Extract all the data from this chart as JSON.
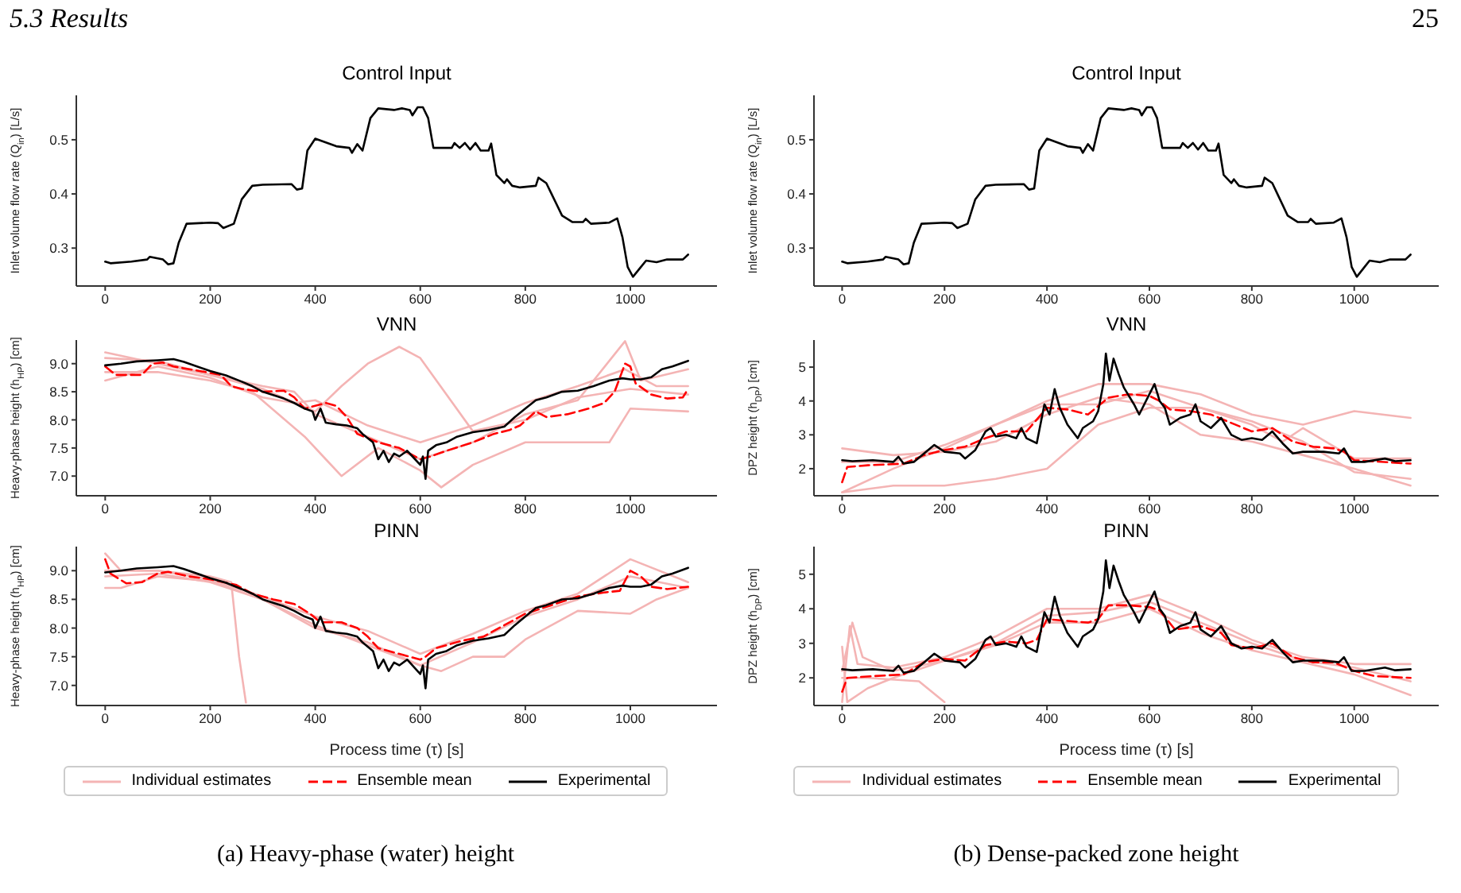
{
  "chart_data": [
    {
      "type": "line",
      "title": "Control Input",
      "ylabel": "Inlet volume flow rate (Q$_{in}$) [L/s]",
      "annotations": [
        "5.3 Results"
      ],
      "xlim": [
        -55,
        1165
      ],
      "xticks": [
        0,
        200,
        400,
        600,
        800,
        1000
      ],
      "ylim": [
        0.23,
        0.582
      ],
      "yticks": [
        0.3,
        0.4,
        0.5
      ],
      "legend": false,
      "series": [
        {
          "color": "#000000",
          "x": [
            0,
            10,
            50,
            80,
            85,
            110,
            120,
            130,
            140,
            155,
            200,
            215,
            225,
            245,
            260,
            280,
            300,
            355,
            365,
            375,
            385,
            400,
            420,
            440,
            465,
            470,
            480,
            490,
            505,
            520,
            550,
            565,
            580,
            585,
            595,
            605,
            615,
            625,
            660,
            665,
            675,
            685,
            695,
            705,
            715,
            730,
            735,
            745,
            760,
            765,
            775,
            790,
            820,
            825,
            840,
            850,
            870,
            890,
            910,
            915,
            925,
            960,
            975,
            985,
            995,
            1005,
            1020,
            1030,
            1050,
            1070,
            1100,
            1110
          ],
          "values": [
            0.275,
            0.272,
            0.275,
            0.279,
            0.284,
            0.279,
            0.27,
            0.272,
            0.31,
            0.345,
            0.347,
            0.346,
            0.337,
            0.345,
            0.39,
            0.415,
            0.417,
            0.418,
            0.408,
            0.41,
            0.48,
            0.502,
            0.495,
            0.488,
            0.485,
            0.476,
            0.492,
            0.48,
            0.54,
            0.558,
            0.555,
            0.558,
            0.555,
            0.545,
            0.56,
            0.56,
            0.54,
            0.485,
            0.485,
            0.494,
            0.485,
            0.494,
            0.482,
            0.494,
            0.48,
            0.48,
            0.493,
            0.435,
            0.42,
            0.427,
            0.415,
            0.412,
            0.415,
            0.43,
            0.42,
            0.4,
            0.36,
            0.348,
            0.348,
            0.354,
            0.345,
            0.347,
            0.355,
            0.32,
            0.265,
            0.247,
            0.265,
            0.277,
            0.274,
            0.279,
            0.279,
            0.288
          ]
        }
      ]
    },
    {
      "type": "line",
      "title": "VNN",
      "ylabel": "Heavy-phase height (h$_{HP}$) [cm]",
      "xlim": [
        -55,
        1165
      ],
      "xticks": [
        0,
        200,
        400,
        600,
        800,
        1000
      ],
      "ylim": [
        6.65,
        9.42
      ],
      "yticks": [
        {
          "value": 7,
          "label": "7.0"
        },
        7.5,
        {
          "value": 8,
          "label": "8.0"
        },
        8.5,
        {
          "value": 9,
          "label": "9.0"
        }
      ],
      "legend": false,
      "series": [
        {
          "color": "#f4b4b4",
          "x": [
            0,
            100,
            200,
            300,
            360,
            400,
            500,
            600,
            700,
            800,
            900,
            990,
            1020,
            1110
          ],
          "values": [
            9.1,
            9.05,
            8.8,
            8.6,
            8.5,
            8.1,
            7.7,
            7.3,
            7.6,
            8.1,
            8.35,
            9.4,
            8.7,
            8.9
          ]
        },
        {
          "color": "#f4b4b4",
          "x": [
            0,
            100,
            200,
            300,
            360,
            400,
            500,
            600,
            700,
            800,
            900,
            990,
            1050,
            1110
          ],
          "values": [
            8.7,
            8.95,
            8.75,
            8.4,
            8.3,
            8.35,
            7.9,
            7.6,
            7.9,
            8.3,
            8.6,
            8.9,
            8.6,
            8.6
          ]
        },
        {
          "color": "#f4b4b4",
          "x": [
            0,
            100,
            200,
            280,
            380,
            420,
            450,
            520,
            600,
            640,
            700,
            800,
            900,
            960,
            1000,
            1110
          ],
          "values": [
            8.85,
            8.85,
            8.7,
            8.5,
            7.7,
            7.3,
            7.0,
            7.5,
            7.1,
            6.8,
            7.2,
            7.6,
            7.6,
            7.6,
            8.2,
            8.15
          ]
        },
        {
          "color": "#f4b4b4",
          "x": [
            0,
            100,
            200,
            300,
            400,
            450,
            500,
            560,
            600,
            700,
            800,
            900,
            1000,
            1110
          ],
          "values": [
            9.2,
            9.0,
            8.8,
            8.55,
            8.15,
            8.6,
            9.0,
            9.3,
            9.1,
            7.8,
            8.0,
            8.4,
            8.55,
            8.45
          ]
        },
        {
          "color": "#ff0000",
          "line_style": "dashed",
          "x": [
            0,
            20,
            70,
            90,
            110,
            130,
            180,
            220,
            240,
            260,
            300,
            340,
            360,
            380,
            400,
            420,
            440,
            460,
            480,
            520,
            560,
            580,
            600,
            620,
            650,
            700,
            740,
            770,
            790,
            820,
            840,
            880,
            920,
            950,
            970,
            990,
            1000,
            1010,
            1040,
            1070,
            1100,
            1110
          ],
          "values": [
            8.95,
            8.8,
            8.8,
            9.0,
            9.02,
            8.95,
            8.87,
            8.8,
            8.6,
            8.55,
            8.5,
            8.52,
            8.4,
            8.2,
            8.25,
            8.3,
            8.25,
            8.05,
            7.75,
            7.6,
            7.5,
            7.4,
            7.3,
            7.35,
            7.45,
            7.6,
            7.75,
            7.82,
            7.9,
            8.15,
            8.05,
            8.1,
            8.2,
            8.3,
            8.5,
            9.0,
            8.95,
            8.65,
            8.45,
            8.38,
            8.4,
            8.55
          ]
        },
        {
          "color": "#000000",
          "x": [
            0,
            30,
            60,
            100,
            130,
            150,
            200,
            230,
            260,
            280,
            300,
            320,
            340,
            360,
            380,
            395,
            400,
            410,
            420,
            440,
            460,
            480,
            490,
            510,
            520,
            530,
            540,
            550,
            560,
            575,
            590,
            600,
            605,
            610,
            615,
            630,
            650,
            670,
            700,
            730,
            760,
            780,
            800,
            820,
            840,
            870,
            900,
            930,
            960,
            985,
            1000,
            1020,
            1040,
            1060,
            1080,
            1110
          ],
          "values": [
            8.97,
            9.0,
            9.04,
            9.06,
            9.08,
            9.03,
            8.87,
            8.79,
            8.68,
            8.6,
            8.5,
            8.44,
            8.38,
            8.3,
            8.2,
            8.15,
            8.0,
            8.2,
            7.95,
            7.92,
            7.9,
            7.85,
            7.75,
            7.6,
            7.3,
            7.45,
            7.25,
            7.4,
            7.35,
            7.45,
            7.3,
            7.2,
            7.35,
            6.95,
            7.45,
            7.55,
            7.6,
            7.7,
            7.78,
            7.82,
            7.88,
            8.05,
            8.2,
            8.35,
            8.4,
            8.5,
            8.52,
            8.6,
            8.7,
            8.74,
            8.72,
            8.72,
            8.76,
            8.9,
            8.95,
            9.05
          ]
        }
      ]
    },
    {
      "type": "line",
      "title": "PINN",
      "ylabel": "Heavy-phase height (h$_{HP}$) [cm]",
      "xlabel": "Process time (τ) [s]",
      "annotations": [
        "(a) Heavy-phase (water) height"
      ],
      "xlim": [
        -55,
        1165
      ],
      "xticks": [
        0,
        200,
        400,
        600,
        800,
        1000
      ],
      "ylim": [
        6.65,
        9.42
      ],
      "yticks": [
        {
          "value": 7,
          "label": "7.0"
        },
        7.5,
        {
          "value": 8,
          "label": "8.0"
        },
        8.5,
        {
          "value": 9,
          "label": "9.0"
        }
      ],
      "legend": "bottom",
      "series": [
        {
          "name": "Individual estimates",
          "color": "#f4b4b4",
          "x": [
            0,
            30,
            100,
            200,
            300,
            400,
            500,
            600,
            700,
            800,
            900,
            1000,
            1110
          ],
          "values": [
            9.3,
            9.0,
            9.0,
            8.85,
            8.55,
            8.2,
            7.95,
            7.55,
            7.9,
            8.3,
            8.6,
            9.2,
            8.8
          ]
        },
        {
          "color": "#f4b4b4",
          "x": [
            0,
            30,
            100,
            200,
            300,
            400,
            500,
            600,
            700,
            800,
            900,
            1000,
            1110
          ],
          "values": [
            8.7,
            8.7,
            8.9,
            8.82,
            8.5,
            8.0,
            7.75,
            7.35,
            7.75,
            8.2,
            8.5,
            8.9,
            8.7
          ]
        },
        {
          "color": "#f4b4b4",
          "x": [
            0,
            100,
            200,
            240,
            255,
            268
          ],
          "values": [
            9.0,
            9.0,
            8.9,
            8.8,
            7.5,
            6.7
          ]
        },
        {
          "color": "#f4b4b4",
          "x": [
            0,
            100,
            200,
            300,
            400,
            500,
            600,
            640,
            700,
            760,
            800,
            900,
            1000,
            1050,
            1110
          ],
          "values": [
            8.9,
            8.95,
            8.8,
            8.5,
            8.05,
            7.7,
            7.35,
            7.25,
            7.5,
            7.5,
            7.8,
            8.3,
            8.25,
            8.5,
            8.7
          ]
        },
        {
          "name": "Ensemble mean",
          "color": "#ff0000",
          "line_style": "dashed",
          "x": [
            0,
            10,
            40,
            70,
            100,
            120,
            160,
            200,
            250,
            280,
            320,
            360,
            390,
            410,
            450,
            480,
            500,
            520,
            560,
            600,
            610,
            630,
            680,
            720,
            760,
            800,
            850,
            900,
            950,
            980,
            1000,
            1020,
            1040,
            1070,
            1110
          ],
          "values": [
            9.2,
            8.95,
            8.78,
            8.8,
            8.95,
            8.98,
            8.9,
            8.85,
            8.75,
            8.6,
            8.5,
            8.42,
            8.25,
            8.1,
            8.1,
            8.0,
            7.85,
            7.65,
            7.55,
            7.45,
            7.5,
            7.65,
            7.78,
            7.85,
            8.05,
            8.25,
            8.4,
            8.55,
            8.62,
            8.65,
            9.0,
            8.9,
            8.72,
            8.68,
            8.72
          ]
        },
        {
          "name": "Experimental",
          "color": "#000000",
          "x": [
            0,
            30,
            60,
            100,
            130,
            150,
            200,
            230,
            260,
            280,
            300,
            320,
            340,
            360,
            380,
            395,
            400,
            410,
            420,
            440,
            460,
            480,
            490,
            510,
            520,
            530,
            540,
            550,
            560,
            575,
            590,
            600,
            605,
            610,
            615,
            630,
            650,
            670,
            700,
            730,
            760,
            780,
            800,
            820,
            840,
            870,
            900,
            930,
            960,
            985,
            1000,
            1020,
            1040,
            1060,
            1080,
            1110
          ],
          "values": [
            8.97,
            9.0,
            9.04,
            9.06,
            9.08,
            9.03,
            8.87,
            8.79,
            8.68,
            8.6,
            8.5,
            8.44,
            8.38,
            8.3,
            8.2,
            8.15,
            8.0,
            8.2,
            7.95,
            7.92,
            7.9,
            7.85,
            7.75,
            7.6,
            7.3,
            7.45,
            7.25,
            7.4,
            7.35,
            7.45,
            7.3,
            7.2,
            7.35,
            6.95,
            7.45,
            7.55,
            7.6,
            7.7,
            7.78,
            7.82,
            7.88,
            8.05,
            8.2,
            8.35,
            8.4,
            8.5,
            8.52,
            8.6,
            8.7,
            8.74,
            8.72,
            8.72,
            8.76,
            8.9,
            8.95,
            9.05
          ]
        }
      ]
    },
    {
      "type": "line",
      "title": "Control Input",
      "ylabel": "Inlet volume flow rate (Q$_{in}$) [L/s]",
      "annotations": [
        "25"
      ],
      "xlim": [
        -55,
        1165
      ],
      "xticks": [
        0,
        200,
        400,
        600,
        800,
        1000
      ],
      "ylim": [
        0.23,
        0.582
      ],
      "yticks": [
        0.3,
        0.4,
        0.5
      ],
      "legend": false,
      "series": [
        {
          "color": "#000000",
          "x": [
            0,
            10,
            50,
            80,
            85,
            110,
            120,
            130,
            140,
            155,
            200,
            215,
            225,
            245,
            260,
            280,
            300,
            355,
            365,
            375,
            385,
            400,
            420,
            440,
            465,
            470,
            480,
            490,
            505,
            520,
            550,
            565,
            580,
            585,
            595,
            605,
            615,
            625,
            660,
            665,
            675,
            685,
            695,
            705,
            715,
            730,
            735,
            745,
            760,
            765,
            775,
            790,
            820,
            825,
            840,
            850,
            870,
            890,
            910,
            915,
            925,
            960,
            975,
            985,
            995,
            1005,
            1020,
            1030,
            1050,
            1070,
            1100,
            1110
          ],
          "values": [
            0.275,
            0.272,
            0.275,
            0.279,
            0.284,
            0.279,
            0.27,
            0.272,
            0.31,
            0.345,
            0.347,
            0.346,
            0.337,
            0.345,
            0.39,
            0.415,
            0.417,
            0.418,
            0.408,
            0.41,
            0.48,
            0.502,
            0.495,
            0.488,
            0.485,
            0.476,
            0.492,
            0.48,
            0.54,
            0.558,
            0.555,
            0.558,
            0.555,
            0.545,
            0.56,
            0.56,
            0.54,
            0.485,
            0.485,
            0.494,
            0.485,
            0.494,
            0.482,
            0.494,
            0.48,
            0.48,
            0.493,
            0.435,
            0.42,
            0.427,
            0.415,
            0.412,
            0.415,
            0.43,
            0.42,
            0.4,
            0.36,
            0.348,
            0.348,
            0.354,
            0.345,
            0.347,
            0.355,
            0.32,
            0.265,
            0.247,
            0.265,
            0.277,
            0.274,
            0.279,
            0.279,
            0.288
          ]
        }
      ]
    },
    {
      "type": "line",
      "title": "VNN",
      "ylabel": "DPZ height (h$_{DP}$) [cm]",
      "xlim": [
        -55,
        1165
      ],
      "xticks": [
        0,
        200,
        400,
        600,
        800,
        1000
      ],
      "ylim": [
        1.2,
        5.8
      ],
      "yticks": [
        2,
        3,
        4,
        5
      ],
      "legend": false,
      "series": [
        {
          "color": "#f4b4b4",
          "x": [
            0,
            100,
            200,
            300,
            400,
            500,
            600,
            700,
            800,
            900,
            1000,
            1110
          ],
          "values": [
            1.3,
            2.0,
            2.6,
            3.3,
            4.0,
            4.5,
            4.5,
            4.2,
            3.6,
            3.3,
            3.7,
            3.5
          ]
        },
        {
          "color": "#f4b4b4",
          "x": [
            0,
            100,
            200,
            300,
            400,
            500,
            600,
            700,
            800,
            900,
            1000,
            1110
          ],
          "values": [
            2.6,
            2.4,
            2.5,
            2.8,
            3.6,
            4.1,
            3.9,
            3.0,
            2.8,
            2.4,
            2.0,
            1.5
          ]
        },
        {
          "color": "#f4b4b4",
          "x": [
            0,
            100,
            200,
            300,
            400,
            500,
            600,
            700,
            800,
            900,
            1000,
            1110
          ],
          "values": [
            1.3,
            1.5,
            1.5,
            1.7,
            2.0,
            3.3,
            3.8,
            3.8,
            3.4,
            2.8,
            1.9,
            1.7
          ]
        },
        {
          "color": "#f4b4b4",
          "x": [
            0,
            100,
            200,
            300,
            400,
            500,
            600,
            700,
            800,
            860,
            900,
            1000,
            1110
          ],
          "values": [
            2.2,
            2.2,
            2.7,
            3.3,
            3.9,
            3.9,
            4.3,
            3.8,
            3.3,
            2.8,
            3.2,
            2.3,
            2.3
          ]
        },
        {
          "color": "#ff0000",
          "line_style": "dashed",
          "x": [
            0,
            10,
            50,
            120,
            160,
            200,
            240,
            280,
            320,
            360,
            400,
            440,
            480,
            520,
            560,
            600,
            620,
            640,
            680,
            720,
            760,
            800,
            840,
            880,
            920,
            960,
            980,
            1000,
            1110
          ],
          "values": [
            1.6,
            2.05,
            2.1,
            2.15,
            2.4,
            2.55,
            2.65,
            2.9,
            3.1,
            3.1,
            3.8,
            3.75,
            3.6,
            4.1,
            4.2,
            4.15,
            4.0,
            3.75,
            3.7,
            3.6,
            3.35,
            3.1,
            3.2,
            2.8,
            2.65,
            2.6,
            2.5,
            2.25,
            2.15
          ]
        },
        {
          "color": "#000000",
          "x": [
            0,
            20,
            60,
            100,
            110,
            120,
            140,
            160,
            180,
            190,
            200,
            230,
            240,
            260,
            280,
            290,
            300,
            320,
            340,
            350,
            360,
            380,
            395,
            405,
            415,
            425,
            440,
            460,
            470,
            490,
            500,
            510,
            515,
            522,
            530,
            540,
            550,
            570,
            580,
            600,
            610,
            620,
            630,
            640,
            660,
            680,
            690,
            700,
            720,
            740,
            760,
            780,
            800,
            820,
            840,
            860,
            880,
            900,
            940,
            970,
            980,
            995,
            1020,
            1060,
            1080,
            1110
          ],
          "values": [
            2.25,
            2.22,
            2.25,
            2.2,
            2.35,
            2.15,
            2.2,
            2.45,
            2.7,
            2.6,
            2.5,
            2.45,
            2.3,
            2.55,
            3.1,
            3.2,
            2.95,
            3.0,
            2.9,
            3.2,
            2.9,
            2.75,
            3.9,
            3.6,
            4.35,
            3.8,
            3.3,
            2.9,
            3.2,
            3.4,
            3.7,
            4.5,
            5.4,
            4.6,
            5.25,
            4.8,
            4.4,
            3.9,
            3.6,
            4.2,
            4.5,
            4.0,
            3.8,
            3.3,
            3.5,
            3.6,
            3.9,
            3.4,
            3.2,
            3.5,
            3.0,
            2.85,
            2.9,
            2.85,
            3.1,
            2.75,
            2.45,
            2.5,
            2.5,
            2.45,
            2.6,
            2.2,
            2.2,
            2.3,
            2.22,
            2.25
          ]
        }
      ]
    },
    {
      "type": "line",
      "title": "PINN",
      "ylabel": "DPZ height (h$_{DP}$) [cm]",
      "xlabel": "Process time (τ) [s]",
      "annotations": [
        "(b) Dense-packed zone height"
      ],
      "xlim": [
        -55,
        1165
      ],
      "xticks": [
        0,
        200,
        400,
        600,
        800,
        1000
      ],
      "ylim": [
        1.2,
        5.8
      ],
      "yticks": [
        2,
        3,
        4,
        5
      ],
      "legend": "bottom",
      "series": [
        {
          "name": "Individual estimates",
          "color": "#f4b4b4",
          "x": [
            0,
            15,
            30,
            100,
            200,
            300,
            400,
            500,
            600,
            700,
            800,
            900,
            1000,
            1110
          ],
          "values": [
            1.3,
            3.5,
            2.4,
            2.3,
            2.6,
            3.2,
            4.0,
            4.0,
            4.4,
            3.8,
            3.1,
            2.6,
            2.4,
            2.4
          ]
        },
        {
          "color": "#f4b4b4",
          "x": [
            0,
            10,
            50,
            100,
            200,
            300,
            400,
            500,
            600,
            700,
            800,
            900,
            1000,
            1110
          ],
          "values": [
            2.9,
            1.3,
            1.7,
            2.0,
            2.5,
            2.95,
            3.6,
            3.6,
            4.0,
            3.3,
            2.8,
            2.45,
            2.1,
            1.5
          ]
        },
        {
          "color": "#f4b4b4",
          "x": [
            0,
            50,
            150,
            200
          ],
          "values": [
            2.0,
            2.0,
            1.9,
            1.3
          ]
        },
        {
          "color": "#f4b4b4",
          "x": [
            0,
            20,
            40,
            100,
            200,
            300,
            400,
            500,
            600,
            700,
            800,
            900,
            1000,
            1110
          ],
          "values": [
            2.2,
            3.6,
            2.6,
            2.2,
            2.5,
            3.0,
            3.8,
            3.9,
            4.2,
            3.6,
            3.0,
            2.5,
            2.3,
            1.9
          ]
        },
        {
          "name": "Ensemble mean",
          "color": "#ff0000",
          "line_style": "dashed",
          "x": [
            0,
            10,
            60,
            120,
            160,
            200,
            240,
            280,
            320,
            360,
            380,
            400,
            440,
            480,
            500,
            520,
            560,
            600,
            620,
            650,
            700,
            740,
            760,
            800,
            840,
            880,
            920,
            960,
            1000,
            1040,
            1110
          ],
          "values": [
            1.6,
            2.0,
            2.05,
            2.1,
            2.45,
            2.55,
            2.5,
            2.95,
            3.05,
            3.0,
            3.1,
            3.7,
            3.65,
            3.6,
            3.7,
            4.1,
            4.1,
            4.05,
            3.95,
            3.4,
            3.5,
            3.3,
            2.95,
            2.85,
            3.0,
            2.6,
            2.45,
            2.45,
            2.2,
            2.05,
            2.0
          ]
        },
        {
          "name": "Experimental",
          "color": "#000000",
          "x": [
            0,
            20,
            60,
            100,
            110,
            120,
            140,
            160,
            180,
            190,
            200,
            230,
            240,
            260,
            280,
            290,
            300,
            320,
            340,
            350,
            360,
            380,
            395,
            405,
            415,
            425,
            440,
            460,
            470,
            490,
            500,
            510,
            515,
            522,
            530,
            540,
            550,
            570,
            580,
            600,
            610,
            620,
            630,
            640,
            660,
            680,
            690,
            700,
            720,
            740,
            760,
            780,
            800,
            820,
            840,
            860,
            880,
            900,
            940,
            970,
            980,
            995,
            1020,
            1060,
            1080,
            1110
          ],
          "values": [
            2.25,
            2.22,
            2.25,
            2.2,
            2.35,
            2.15,
            2.2,
            2.45,
            2.7,
            2.6,
            2.5,
            2.45,
            2.3,
            2.55,
            3.1,
            3.2,
            2.95,
            3.0,
            2.9,
            3.2,
            2.9,
            2.75,
            3.9,
            3.6,
            4.35,
            3.8,
            3.3,
            2.9,
            3.2,
            3.4,
            3.7,
            4.5,
            5.4,
            4.6,
            5.25,
            4.8,
            4.4,
            3.9,
            3.6,
            4.2,
            4.5,
            4.0,
            3.8,
            3.3,
            3.5,
            3.6,
            3.9,
            3.4,
            3.2,
            3.5,
            3.0,
            2.85,
            2.9,
            2.85,
            3.1,
            2.75,
            2.45,
            2.5,
            2.5,
            2.45,
            2.6,
            2.2,
            2.2,
            2.3,
            2.22,
            2.25
          ]
        }
      ]
    }
  ]
}
